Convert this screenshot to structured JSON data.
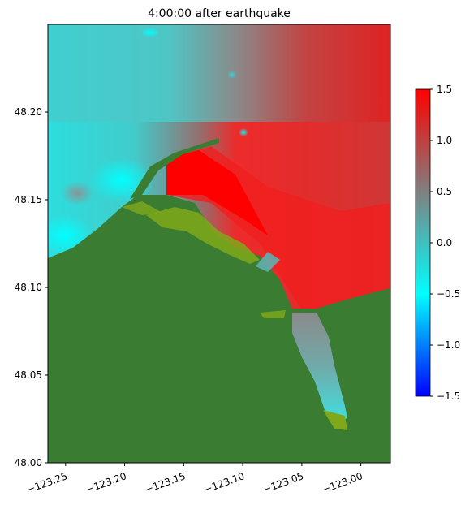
{
  "chart_data": {
    "type": "heatmap",
    "title": "4:00:00 after earthquake",
    "xlabel": "",
    "ylabel": "",
    "xlim": [
      -123.265,
      -122.975
    ],
    "ylim": [
      48.0,
      48.25
    ],
    "x_ticks": [
      -123.25,
      -123.2,
      -123.15,
      -123.1,
      -123.05,
      -123.0
    ],
    "x_tick_labels": [
      "−123.25",
      "−123.20",
      "−123.15",
      "−123.10",
      "−123.05",
      "−123.00"
    ],
    "y_ticks": [
      48.0,
      48.05,
      48.1,
      48.15,
      48.2
    ],
    "y_tick_labels": [
      "48.00",
      "48.05",
      "48.10",
      "48.15",
      "48.20"
    ],
    "colorbar": {
      "range": [
        -1.5,
        1.5
      ],
      "ticks": [
        1.5,
        1.0,
        0.5,
        0.0,
        -0.5,
        -1.0,
        -1.5
      ],
      "tick_labels": [
        "1.5",
        "1.0",
        "0.5",
        "0.0",
        "−0.5",
        "−1.0",
        "−1.5"
      ],
      "colors": [
        "#0000ff",
        "#00ffff",
        "#808080",
        "#ff0000"
      ]
    },
    "land_color": "#3a7d32",
    "tidal_flat_color": "#7fa81a",
    "grid": false
  }
}
